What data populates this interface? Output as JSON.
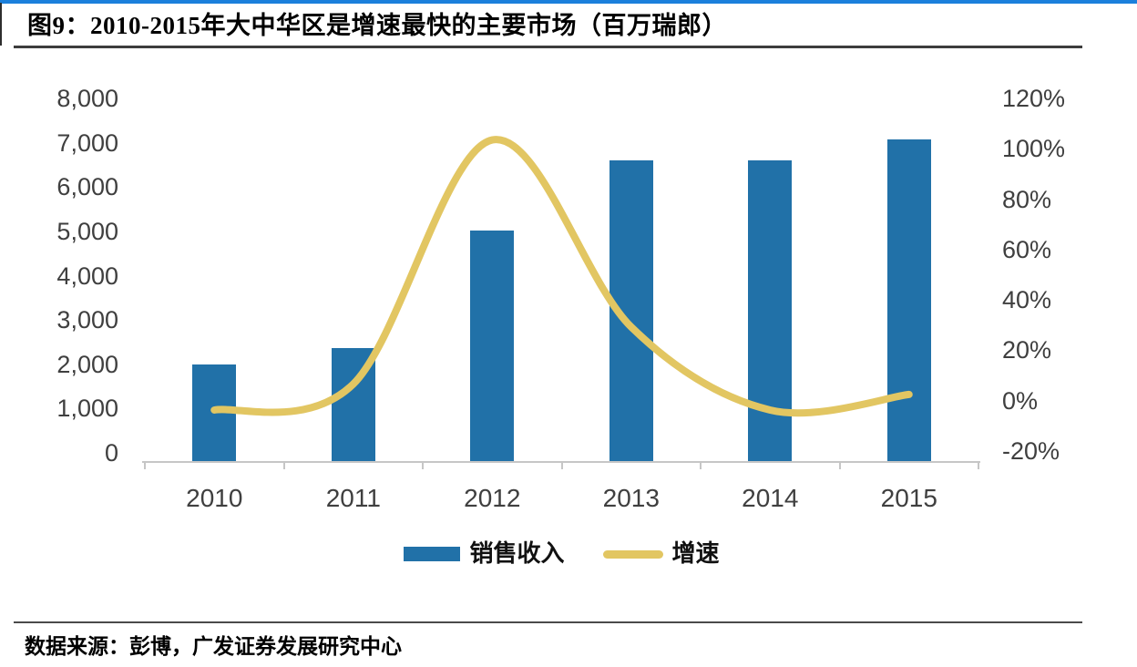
{
  "page": {
    "title": "图9：2010-2015年大中华区是增速最快的主要市场（百万瑞郎）",
    "source": "数据来源：彭博，广发证券发展研究中心"
  },
  "colors": {
    "top_strip": "#1b80dc",
    "bar": "#2171a8",
    "line": "#e2c662",
    "axis": "#c6c6c6",
    "tick_text": "#3f3f3f",
    "rule": "#3d3d3d"
  },
  "chart_data": {
    "type": "bar",
    "subtype": "combo-bar-line-dual-axis",
    "title": "图9：2010-2015年大中华区是增速最快的主要市场（百万瑞郎）",
    "categories": [
      "2010",
      "2011",
      "2012",
      "2013",
      "2014",
      "2015"
    ],
    "series": [
      {
        "name": "销售收入",
        "type": "bar",
        "axis": "left",
        "values": [
          2150,
          2500,
          5100,
          6630,
          6640,
          7090
        ]
      },
      {
        "name": "增速",
        "type": "line",
        "axis": "right",
        "values_percent": [
          0,
          10,
          104,
          32,
          0,
          6
        ]
      }
    ],
    "left_axis": {
      "min": 0,
      "max": 8000,
      "step": 1000,
      "tick_labels": [
        "8,000",
        "7,000",
        "6,000",
        "5,000",
        "4,000",
        "3,000",
        "2,000",
        "1,000",
        "0"
      ]
    },
    "right_axis": {
      "min": -20,
      "max": 120,
      "step": 20,
      "tick_labels": [
        "120%",
        "100%",
        "80%",
        "60%",
        "40%",
        "20%",
        "0%",
        "-20%"
      ]
    },
    "legend": [
      {
        "label": "销售收入",
        "swatch": "bar"
      },
      {
        "label": "增速",
        "swatch": "line"
      }
    ],
    "grid": false,
    "legend_position": "bottom"
  }
}
